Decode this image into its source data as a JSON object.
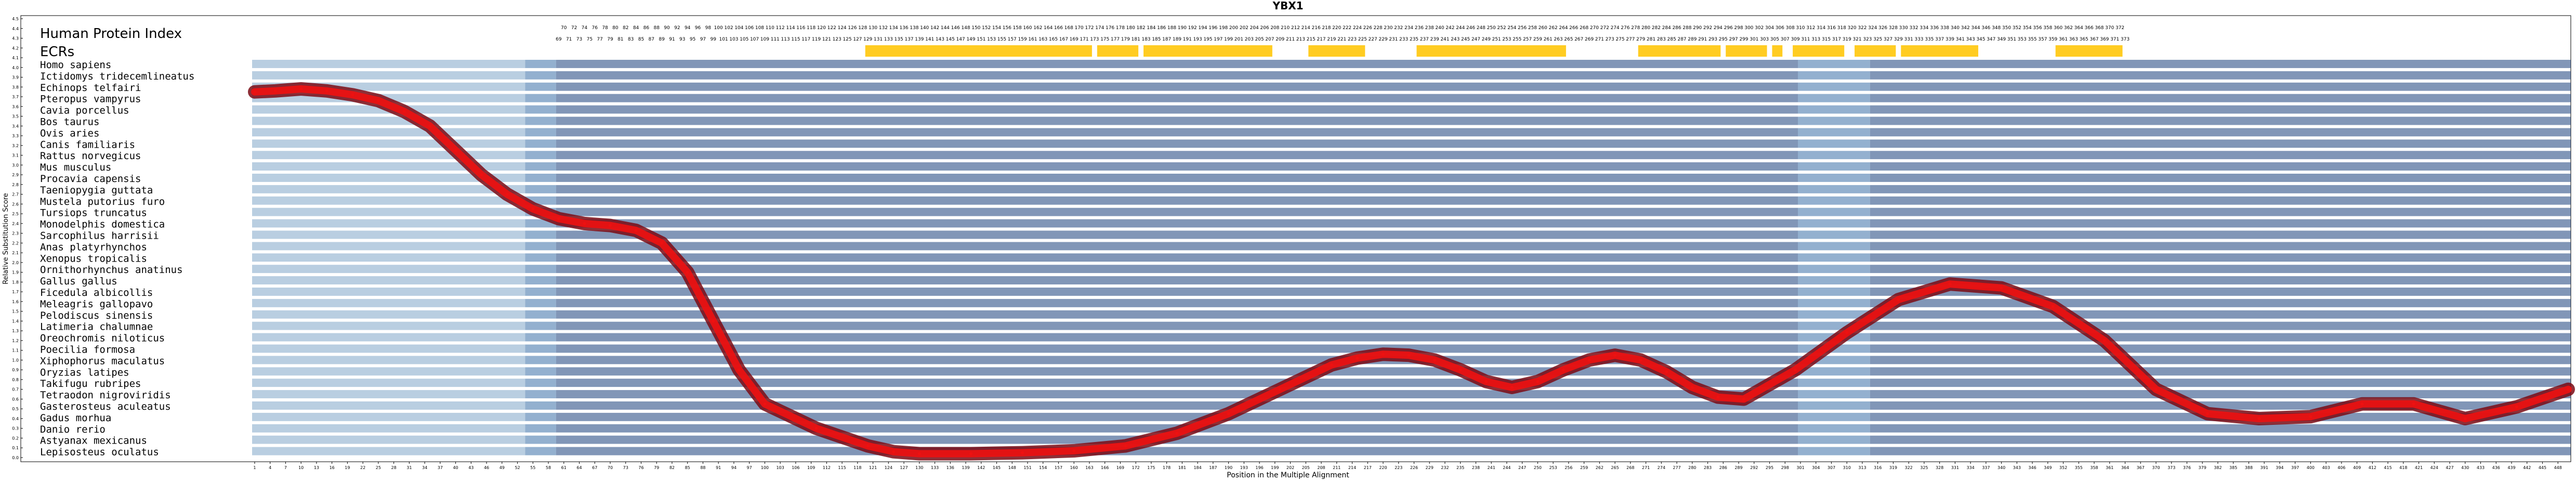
{
  "chart_data": {
    "type": "line",
    "title": "YBX1",
    "xlabel": "Position in the Multiple Alignment",
    "ylabel": "Relative Substitution Score",
    "xlim": [
      1,
      450
    ],
    "ylim": [
      0,
      4.5
    ],
    "yticks": [
      0.0,
      0.1,
      0.2,
      0.3,
      0.4,
      0.5,
      0.6,
      0.7,
      0.8,
      0.9,
      1.0,
      1.1,
      1.2,
      1.3,
      1.4,
      1.5,
      1.6,
      1.7,
      1.8,
      1.9,
      2.0,
      2.1,
      2.2,
      2.3,
      2.4,
      2.5,
      2.6,
      2.7,
      2.8,
      2.9,
      3.0,
      3.1,
      3.2,
      3.3,
      3.4,
      3.5,
      3.6,
      3.7,
      3.8,
      3.9,
      4.0,
      4.1,
      4.2,
      4.3,
      4.4,
      4.5
    ],
    "xticks_step": 3,
    "grid": false,
    "legend": "none",
    "header_labels": [
      "Human Protein Index",
      "ECRs"
    ],
    "species": [
      "Homo sapiens",
      "Ictidomys tridecemlineatus",
      "Echinops telfairi",
      "Pteropus vampyrus",
      "Cavia porcellus",
      "Bos taurus",
      "Ovis aries",
      "Canis familiaris",
      "Rattus norvegicus",
      "Mus musculus",
      "Procavia capensis",
      "Taeniopygia guttata",
      "Mustela putorius furo",
      "Tursiops truncatus",
      "Monodelphis domestica",
      "Sarcophilus harrisii",
      "Anas platyrhynchos",
      "Xenopus tropicalis",
      "Ornithorhynchus anatinus",
      "Gallus gallus",
      "Ficedula albicollis",
      "Meleagris gallopavo",
      "Pelodiscus sinensis",
      "Latimeria chalumnae",
      "Oreochromis niloticus",
      "Poecilia formosa",
      "Xiphophorus maculatus",
      "Oryzias latipes",
      "Takifugu rubripes",
      "Tetraodon nigroviridis",
      "Gasterosteus aculeatus",
      "Gadus morhua",
      "Danio rerio",
      "Astyanax mexicanus",
      "Lepisosteus oculatus"
    ],
    "ecr_regions": [
      [
        129,
        172
      ],
      [
        174,
        181
      ],
      [
        183,
        207
      ],
      [
        215,
        225
      ],
      [
        236,
        264
      ],
      [
        279,
        294
      ],
      [
        296,
        303
      ],
      [
        305,
        306
      ],
      [
        309,
        318
      ],
      [
        321,
        328
      ],
      [
        330,
        344
      ],
      [
        360,
        372
      ]
    ],
    "human_index_start": 69,
    "human_index_end": 373,
    "human_index_first_column": 60,
    "series": [
      {
        "color": "#ee1111",
        "x": [
          1,
          5,
          10,
          15,
          20,
          25,
          30,
          35,
          40,
          45,
          50,
          55,
          60,
          65,
          70,
          75,
          80,
          85,
          90,
          95,
          100,
          110,
          120,
          125,
          130,
          140,
          150,
          160,
          170,
          180,
          190,
          200,
          210,
          215,
          220,
          225,
          230,
          235,
          240,
          245,
          250,
          255,
          260,
          265,
          270,
          275,
          280,
          285,
          290,
          300,
          310,
          320,
          330,
          340,
          350,
          360,
          370,
          380,
          390,
          400,
          410,
          420,
          430,
          440,
          450
        ],
        "y": [
          3.75,
          3.76,
          3.78,
          3.76,
          3.72,
          3.66,
          3.55,
          3.4,
          3.15,
          2.9,
          2.7,
          2.55,
          2.45,
          2.4,
          2.38,
          2.33,
          2.2,
          1.9,
          1.4,
          0.9,
          0.55,
          0.3,
          0.12,
          0.06,
          0.04,
          0.04,
          0.05,
          0.07,
          0.12,
          0.25,
          0.45,
          0.7,
          0.95,
          1.02,
          1.06,
          1.05,
          1.0,
          0.9,
          0.78,
          0.72,
          0.78,
          0.9,
          1.0,
          1.05,
          1.0,
          0.88,
          0.72,
          0.62,
          0.6,
          0.9,
          1.28,
          1.62,
          1.78,
          1.74,
          1.55,
          1.2,
          0.7,
          0.45,
          0.4,
          0.42,
          0.55,
          0.55,
          0.4,
          0.52,
          0.7
        ]
      }
    ],
    "residue_colors": {
      "high": "#1a3f7c",
      "mid": "#3a6fa8",
      "low": "#7fa6c9",
      "gap": "#95a9bf"
    }
  }
}
